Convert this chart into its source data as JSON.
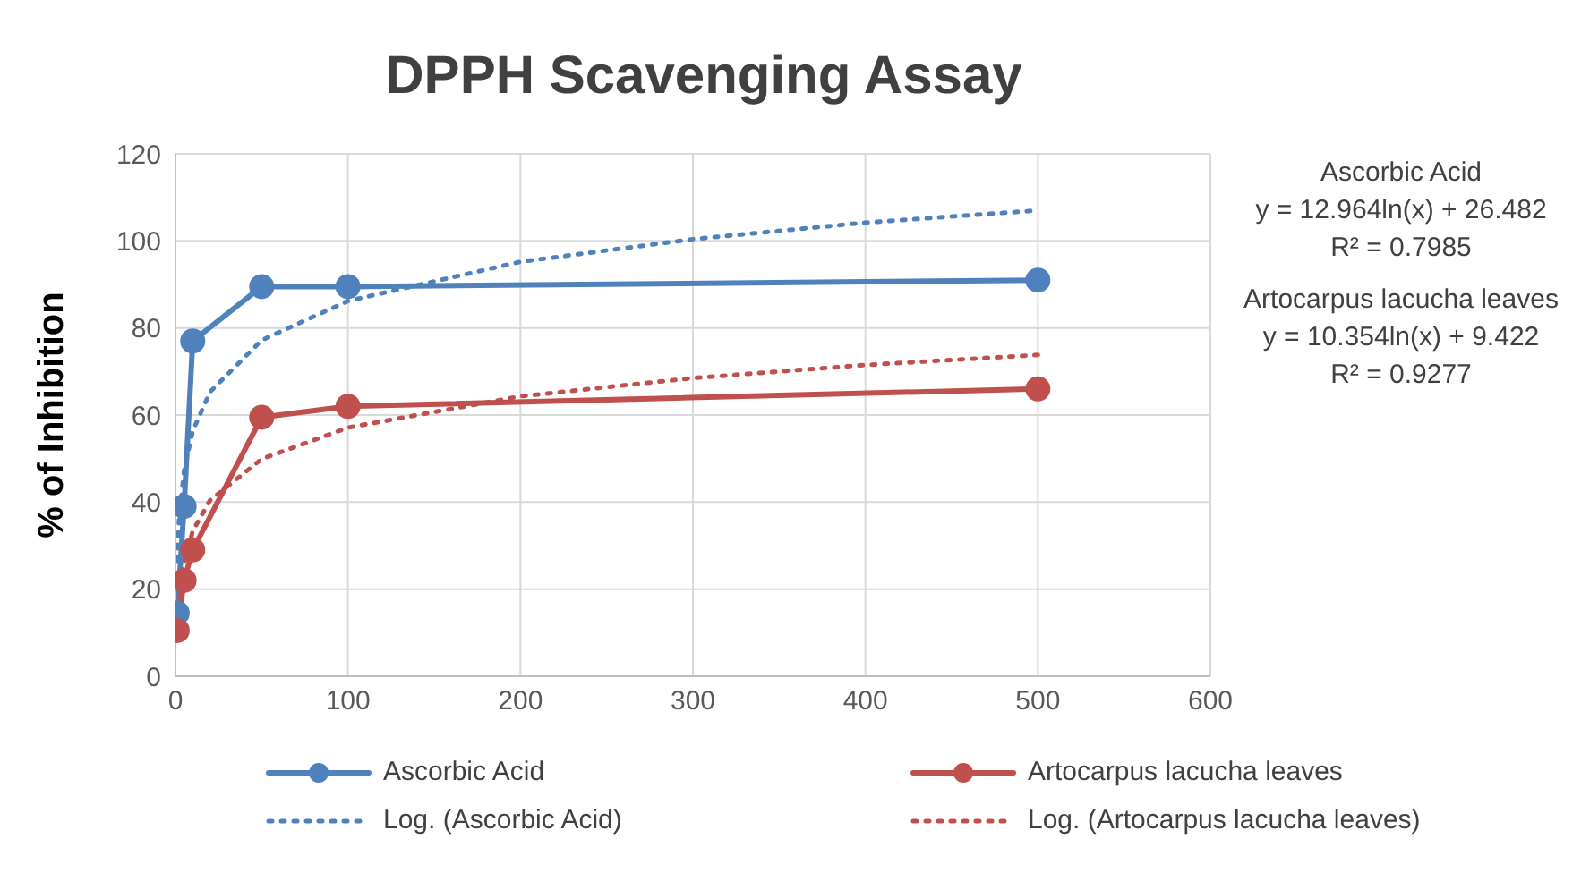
{
  "chart_data": {
    "type": "line",
    "title": "DPPH Scavenging Assay",
    "ylabel": "% of Inhibition",
    "xlim": [
      0,
      600
    ],
    "xticks": [
      0,
      100,
      200,
      300,
      400,
      500,
      600
    ],
    "ylim": [
      0,
      120
    ],
    "yticks": [
      0,
      20,
      40,
      60,
      80,
      100,
      120
    ],
    "grid": true,
    "legend": "bottom",
    "annotations": [
      "Ascorbic Acid",
      "y = 12.964ln(x) + 26.482",
      "R² = 0.7985",
      "Artocarpus lacucha leaves",
      "y = 10.354ln(x) + 9.422",
      "R² = 0.9277"
    ],
    "series": [
      {
        "name": "Ascorbic Acid",
        "color": "#4f81bd",
        "marker": "circle",
        "line_style": "solid",
        "x": [
          1,
          5,
          10,
          50,
          100,
          500
        ],
        "values": [
          14.5,
          39,
          77,
          89.5,
          89.5,
          91
        ]
      },
      {
        "name": "Artocarpus lacucha leaves",
        "color": "#c0504d",
        "marker": "circle",
        "line_style": "solid",
        "x": [
          1,
          5,
          10,
          50,
          100,
          500
        ],
        "values": [
          10.5,
          22,
          29,
          59.5,
          62,
          66
        ]
      },
      {
        "name": "Log. (Ascorbic Acid)",
        "color": "#4f81bd",
        "marker": "none",
        "line_style": "dotted",
        "x": [
          1,
          2,
          5,
          10,
          20,
          50,
          100,
          200,
          300,
          400,
          500
        ],
        "values": [
          26.5,
          35.5,
          47.3,
          56.3,
          65.3,
          77.2,
          86.2,
          95.2,
          100.4,
          104.2,
          107
        ]
      },
      {
        "name": "Log. (Artocarpus lacucha leaves)",
        "color": "#c0504d",
        "marker": "none",
        "line_style": "dotted",
        "x": [
          1,
          2,
          5,
          10,
          20,
          50,
          100,
          200,
          300,
          400,
          500
        ],
        "values": [
          9.4,
          16.6,
          26.1,
          33.3,
          40.4,
          49.9,
          57.1,
          64.3,
          68.5,
          71.5,
          73.8
        ]
      }
    ]
  }
}
